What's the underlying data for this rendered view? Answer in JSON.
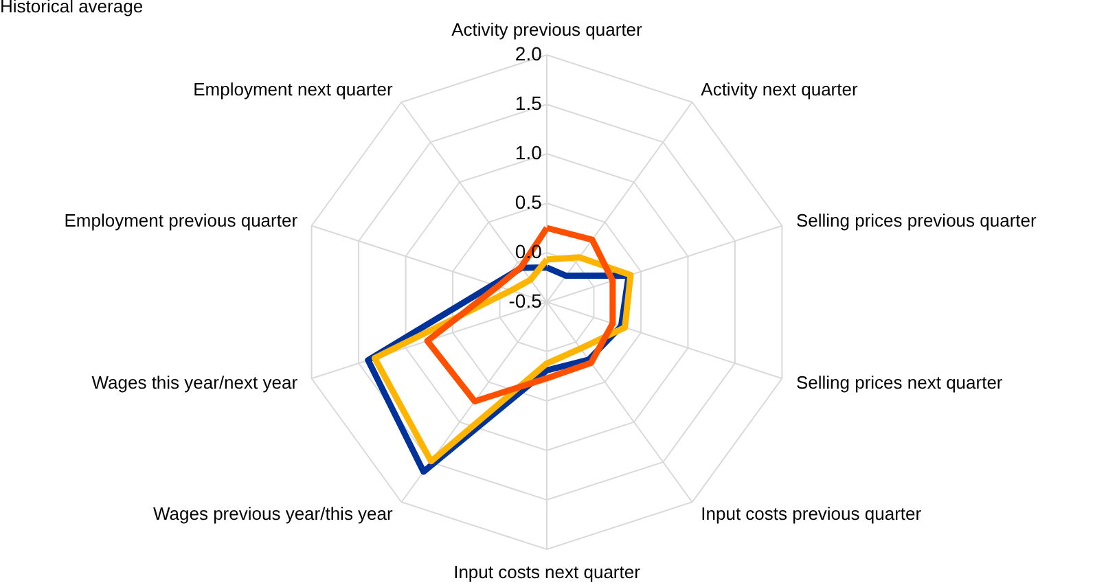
{
  "chart_data": {
    "type": "radar",
    "title": "Historical average",
    "categories": [
      "Activity previous quarter",
      "Activity next quarter",
      "Selling prices previous quarter",
      "Selling prices next quarter",
      "Input costs previous quarter",
      "Input costs next quarter",
      "Wages previous year/this year",
      "Wages this year/next year",
      "Employment previous quarter",
      "Employment next quarter"
    ],
    "series": [
      {
        "color": "#003399",
        "values": [
          -0.15,
          -0.17,
          0.37,
          0.29,
          0.22,
          0.19,
          1.62,
          1.4,
          0.07,
          -0.07
        ]
      },
      {
        "color": "#ffb400",
        "values": [
          -0.07,
          0.06,
          0.39,
          0.33,
          0.08,
          0.12,
          1.49,
          1.33,
          -0.12,
          -0.22
        ]
      },
      {
        "color": "#ff5000",
        "values": [
          0.25,
          0.28,
          0.2,
          0.2,
          0.26,
          0.27,
          0.74,
          0.77,
          0.02,
          -0.06
        ]
      }
    ],
    "ylim": [
      -0.5,
      2
    ],
    "yticks": [
      {
        "value": -0.5,
        "label": "-0.5"
      },
      {
        "value": 0,
        "label": "0.0"
      },
      {
        "value": 0.5,
        "label": "0.5"
      },
      {
        "value": 1,
        "label": "1.0"
      },
      {
        "value": 1.5,
        "label": "1.5"
      },
      {
        "value": 2,
        "label": "2.0"
      }
    ],
    "grid": true
  }
}
